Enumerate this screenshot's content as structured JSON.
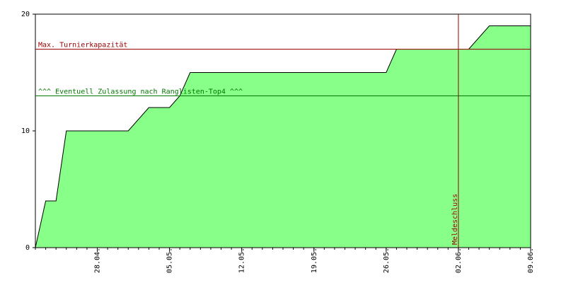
{
  "chart_data": {
    "type": "area",
    "x": [
      "22.04.",
      "23.04.",
      "24.04.",
      "25.04.",
      "01.05.",
      "03.05.",
      "05.05.",
      "06.05.",
      "07.05.",
      "26.05.",
      "27.05.",
      "03.06.",
      "05.06.",
      "09.06."
    ],
    "values": [
      0,
      4,
      4,
      10,
      10,
      12,
      12,
      13,
      15,
      15,
      17,
      17,
      19,
      19
    ],
    "color": "#88ff88",
    "line_color": "#000000",
    "xlim": [
      "22.04.",
      "09.06."
    ],
    "xticks": [
      "28.04.",
      "05.05.",
      "12.05.",
      "19.05.",
      "26.05.",
      "02.06.",
      "09.06."
    ],
    "ylim": [
      0,
      20
    ],
    "yticks": [
      0,
      10,
      20
    ],
    "reference_lines": [
      {
        "label": "Max. Turnierkapazität",
        "value": 17,
        "color": "#990000"
      },
      {
        "label": "^^^ Eventuell Zulassung nach Ranglisten-Top4 ^^^",
        "value": 13,
        "color": "#007700"
      }
    ],
    "vertical_lines": [
      {
        "label": "Meldeschluss",
        "x": "02.06.",
        "color": "#990000"
      }
    ]
  }
}
